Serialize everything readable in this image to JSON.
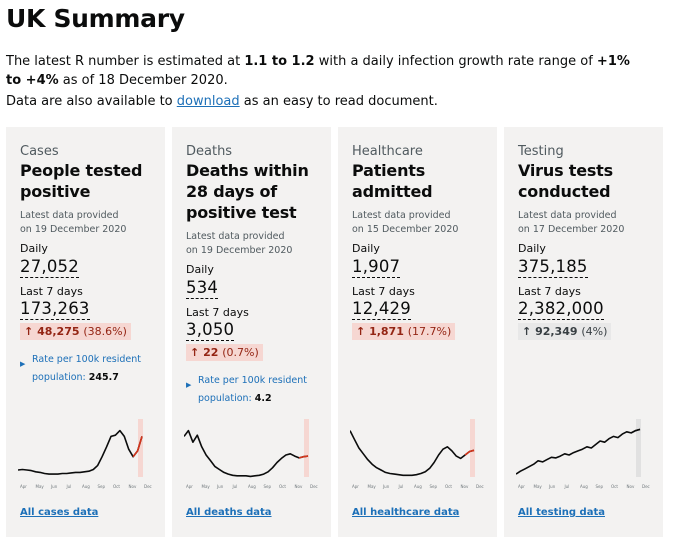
{
  "title": "UK Summary",
  "intro": {
    "p1_before": "The latest R number is estimated at ",
    "r_range": "1.1 to 1.2",
    "p1_mid": " with a daily infection growth rate range of ",
    "growth_range": "+1% to +4%",
    "p1_after": " as of 18 December 2020.",
    "p2_before": "Data are also available to ",
    "p2_link": "download",
    "p2_after": " as an easy to read document."
  },
  "months": [
    "Apr",
    "May",
    "Jun",
    "Jul",
    "Aug",
    "Sep",
    "Oct",
    "Nov",
    "Dec"
  ],
  "colors": {
    "accent": "#1d70b8",
    "increase_bg": "#f6d7d2",
    "increase_fg": "#942514",
    "neutral_bg": "#e8e8e8",
    "card_bg": "#f3f2f1",
    "highlight_bar": "#f6d7d2"
  },
  "cards": [
    {
      "category": "Cases",
      "heading": "People tested positive",
      "latest_line1": "Latest data provided",
      "latest_line2": "on 19 December 2020",
      "daily_label": "Daily",
      "daily_value": "27,052",
      "week_label": "Last 7 days",
      "week_value": "173,263",
      "change_arrow": "↑",
      "change_value": "48,275",
      "change_pct": "(38.6%)",
      "change_direction": "up",
      "rate_label": "Rate per 100k resident population:",
      "rate_value": "245.7",
      "link": "All cases data",
      "trend": [
        0.12,
        0.13,
        0.12,
        0.11,
        0.09,
        0.08,
        0.06,
        0.05,
        0.05,
        0.05,
        0.06,
        0.06,
        0.07,
        0.08,
        0.08,
        0.09,
        0.1,
        0.13,
        0.2,
        0.35,
        0.52,
        0.7,
        0.72,
        0.8,
        0.7,
        0.48,
        0.35,
        0.45,
        0.7
      ]
    },
    {
      "category": "Deaths",
      "heading": "Deaths within 28 days of positive test",
      "latest_line1": "Latest data provided",
      "latest_line2": "on 19 December 2020",
      "daily_label": "Daily",
      "daily_value": "534",
      "week_label": "Last 7 days",
      "week_value": "3,050",
      "change_arrow": "↑",
      "change_value": "22",
      "change_pct": "(0.7%)",
      "change_direction": "up",
      "rate_label": "Rate per 100k resident population:",
      "rate_value": "4.2",
      "link": "All deaths data",
      "trend": [
        0.7,
        0.8,
        0.6,
        0.72,
        0.52,
        0.38,
        0.28,
        0.18,
        0.13,
        0.08,
        0.05,
        0.03,
        0.02,
        0.02,
        0.02,
        0.01,
        0.02,
        0.03,
        0.05,
        0.09,
        0.16,
        0.25,
        0.32,
        0.38,
        0.4,
        0.36,
        0.33,
        0.35,
        0.36
      ]
    },
    {
      "category": "Healthcare",
      "heading": "Patients admitted",
      "latest_line1": "Latest data provided",
      "latest_line2": "on 15 December 2020",
      "daily_label": "Daily",
      "daily_value": "1,907",
      "week_label": "Last 7 days",
      "week_value": "12,429",
      "change_arrow": "↑",
      "change_value": "1,871",
      "change_pct": "(17.7%)",
      "change_direction": "up",
      "link": "All healthcare data",
      "trend": [
        0.8,
        0.65,
        0.5,
        0.4,
        0.3,
        0.22,
        0.16,
        0.12,
        0.08,
        0.06,
        0.05,
        0.04,
        0.03,
        0.03,
        0.03,
        0.04,
        0.06,
        0.09,
        0.15,
        0.25,
        0.38,
        0.48,
        0.52,
        0.45,
        0.36,
        0.32,
        0.38,
        0.44,
        0.46
      ]
    },
    {
      "category": "Testing",
      "heading": "Virus tests conducted",
      "latest_line1": "Latest data provided",
      "latest_line2": "on 17 December 2020",
      "daily_label": "Daily",
      "daily_value": "375,185",
      "week_label": "Last 7 days",
      "week_value": "2,382,000",
      "change_arrow": "↑",
      "change_value": "92,349",
      "change_pct": "(4%)",
      "change_direction": "neutral",
      "link": "All testing data",
      "trend": [
        0.05,
        0.1,
        0.14,
        0.18,
        0.22,
        0.28,
        0.26,
        0.3,
        0.34,
        0.33,
        0.36,
        0.4,
        0.38,
        0.42,
        0.45,
        0.48,
        0.52,
        0.5,
        0.56,
        0.62,
        0.6,
        0.66,
        0.7,
        0.68,
        0.74,
        0.78,
        0.76,
        0.8,
        0.82
      ]
    }
  ]
}
